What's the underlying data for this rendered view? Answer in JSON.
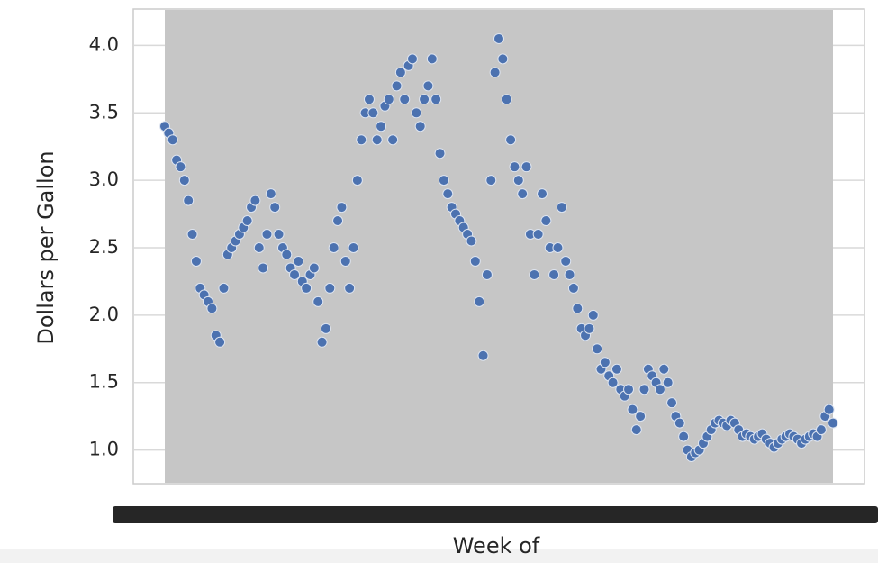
{
  "chart_data": {
    "type": "scatter",
    "xlabel": "Week of",
    "ylabel": "Dollars per Gallon",
    "color": "#4c72b0",
    "grid": true,
    "ylim": [
      0.75,
      4.27
    ],
    "yticks": [
      {
        "value": 1,
        "label": "1.0"
      },
      1.5,
      {
        "value": 2,
        "label": "2.0"
      },
      2.5,
      {
        "value": 3,
        "label": "3.0"
      },
      3.5,
      {
        "value": 4,
        "label": "4.0"
      }
    ],
    "categories": [
      null,
      null,
      null,
      null,
      null,
      null,
      null,
      null,
      null,
      null,
      null,
      null,
      null,
      null,
      null,
      null,
      null,
      null,
      null,
      null,
      null,
      null,
      null,
      null,
      null,
      null,
      null,
      null,
      null,
      null,
      null,
      null,
      null,
      null,
      null,
      null,
      null,
      null,
      null,
      null,
      null,
      null,
      null,
      null,
      null,
      null,
      null,
      null,
      null,
      null,
      null,
      null,
      null,
      null,
      null,
      null,
      null,
      null,
      null,
      null,
      null,
      null,
      null,
      null,
      null,
      null,
      null,
      null,
      null,
      null,
      null,
      null,
      null,
      null,
      null,
      null,
      null,
      null,
      null,
      null,
      null,
      null,
      null,
      null,
      null,
      null,
      null,
      null,
      null,
      null,
      null,
      null,
      null,
      null,
      null,
      null,
      null,
      null,
      null,
      null,
      null,
      null,
      null,
      null,
      null,
      null,
      null,
      null,
      null,
      null,
      null,
      null,
      null,
      null,
      null,
      null,
      null,
      null,
      null,
      null,
      null,
      null,
      null,
      null,
      null,
      null,
      null,
      null,
      null,
      null,
      null,
      null,
      null,
      null,
      null,
      null,
      null,
      null,
      null,
      null,
      null,
      null,
      null,
      null,
      null,
      null,
      null,
      null,
      null,
      null,
      null,
      null,
      null,
      null,
      null,
      null,
      null,
      null,
      null,
      null,
      null,
      null,
      null,
      null,
      null,
      null,
      null,
      null,
      null,
      null,
      null
    ],
    "values": [
      3.4,
      3.35,
      3.3,
      3.15,
      3.1,
      3.0,
      2.85,
      2.6,
      2.4,
      2.2,
      2.15,
      2.1,
      2.05,
      1.85,
      1.8,
      2.2,
      2.45,
      2.5,
      2.55,
      2.6,
      2.65,
      2.7,
      2.8,
      2.85,
      2.5,
      2.35,
      2.6,
      2.9,
      2.8,
      2.6,
      2.5,
      2.45,
      2.35,
      2.3,
      2.4,
      2.25,
      2.2,
      2.3,
      2.35,
      2.1,
      1.8,
      1.9,
      2.2,
      2.5,
      2.7,
      2.8,
      2.4,
      2.2,
      2.5,
      3.0,
      3.3,
      3.5,
      3.6,
      3.5,
      3.3,
      3.4,
      3.55,
      3.6,
      3.3,
      3.7,
      3.8,
      3.6,
      3.85,
      3.9,
      3.5,
      3.4,
      3.6,
      3.7,
      3.9,
      3.6,
      3.2,
      3.0,
      2.9,
      2.8,
      2.75,
      2.7,
      2.65,
      2.6,
      2.55,
      2.4,
      2.1,
      1.7,
      2.3,
      3.0,
      3.8,
      4.05,
      3.9,
      3.6,
      3.3,
      3.1,
      3.0,
      2.9,
      3.1,
      2.6,
      2.3,
      2.6,
      2.9,
      2.7,
      2.5,
      2.3,
      2.5,
      2.8,
      2.4,
      2.3,
      2.2,
      2.05,
      1.9,
      1.85,
      1.9,
      2.0,
      1.75,
      1.6,
      1.65,
      1.55,
      1.5,
      1.6,
      1.45,
      1.4,
      1.45,
      1.3,
      1.15,
      1.25,
      1.45,
      1.6,
      1.55,
      1.5,
      1.45,
      1.6,
      1.5,
      1.35,
      1.25,
      1.2,
      1.1,
      1.0,
      0.95,
      0.98,
      1.0,
      1.05,
      1.1,
      1.15,
      1.2,
      1.22,
      1.2,
      1.18,
      1.22,
      1.2,
      1.15,
      1.1,
      1.12,
      1.1,
      1.08,
      1.1,
      1.12,
      1.08,
      1.05,
      1.02,
      1.05,
      1.08,
      1.1,
      1.12,
      1.1,
      1.08,
      1.05,
      1.08,
      1.1,
      1.12,
      1.1,
      1.15,
      1.25,
      1.3,
      1.2
    ]
  }
}
